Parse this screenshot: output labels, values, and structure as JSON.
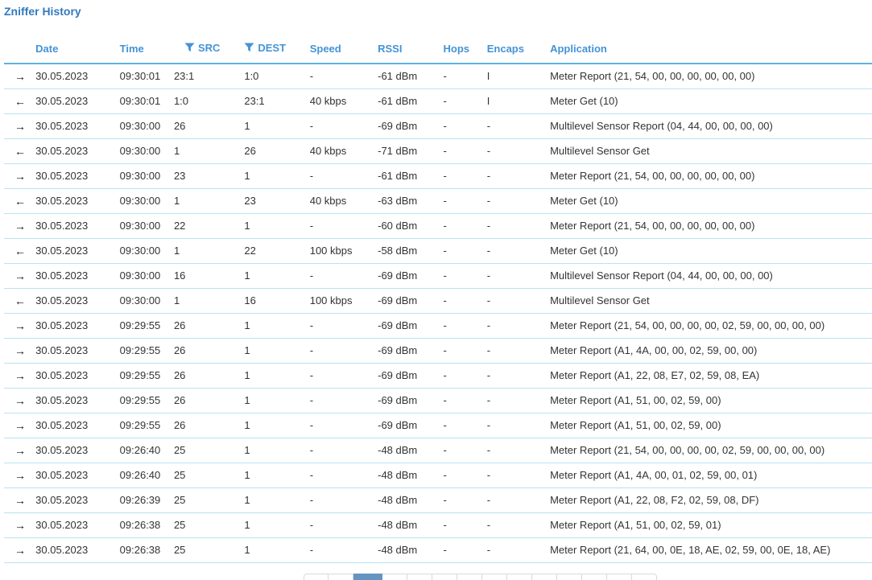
{
  "page": {
    "title": "Zniffer History"
  },
  "colors": {
    "title_blue": "#3279bd",
    "header_blue": "#4493d6",
    "header_underline": "#5fb2e4",
    "row_separator": "#b9e2f4",
    "body_text": "#333333",
    "active_page_btn": "#6593c2"
  },
  "icons": {
    "outgoing_glyph": "→",
    "incoming_glyph": "←",
    "filter_glyph": "funnel-icon"
  },
  "table": {
    "columns": [
      {
        "key": "direction",
        "label": "",
        "filter": false
      },
      {
        "key": "date",
        "label": "Date",
        "filter": false
      },
      {
        "key": "time",
        "label": "Time",
        "filter": false
      },
      {
        "key": "src",
        "label": "SRC",
        "filter": true
      },
      {
        "key": "dest",
        "label": "DEST",
        "filter": true
      },
      {
        "key": "speed",
        "label": "Speed",
        "filter": false
      },
      {
        "key": "rssi",
        "label": "RSSI",
        "filter": false
      },
      {
        "key": "hops",
        "label": "Hops",
        "filter": false
      },
      {
        "key": "encaps",
        "label": "Encaps",
        "filter": false
      },
      {
        "key": "application",
        "label": "Application",
        "filter": false
      }
    ],
    "rows": [
      {
        "direction": "outgoing",
        "date": "30.05.2023",
        "time": "09:30:01",
        "src": "23:1",
        "dest": "1:0",
        "speed": "-",
        "rssi": "-61 dBm",
        "hops": "-",
        "encaps": "I",
        "application": "Meter Report (21, 54, 00, 00, 00, 00, 00, 00)"
      },
      {
        "direction": "incoming",
        "date": "30.05.2023",
        "time": "09:30:01",
        "src": "1:0",
        "dest": "23:1",
        "speed": "40 kbps",
        "rssi": "-61 dBm",
        "hops": "-",
        "encaps": "I",
        "application": "Meter Get (10)"
      },
      {
        "direction": "outgoing",
        "date": "30.05.2023",
        "time": "09:30:00",
        "src": "26",
        "dest": "1",
        "speed": "-",
        "rssi": "-69 dBm",
        "hops": "-",
        "encaps": "-",
        "application": "Multilevel Sensor Report (04, 44, 00, 00, 00, 00)"
      },
      {
        "direction": "incoming",
        "date": "30.05.2023",
        "time": "09:30:00",
        "src": "1",
        "dest": "26",
        "speed": "40 kbps",
        "rssi": "-71 dBm",
        "hops": "-",
        "encaps": "-",
        "application": "Multilevel Sensor Get"
      },
      {
        "direction": "outgoing",
        "date": "30.05.2023",
        "time": "09:30:00",
        "src": "23",
        "dest": "1",
        "speed": "-",
        "rssi": "-61 dBm",
        "hops": "-",
        "encaps": "-",
        "application": "Meter Report (21, 54, 00, 00, 00, 00, 00, 00)"
      },
      {
        "direction": "incoming",
        "date": "30.05.2023",
        "time": "09:30:00",
        "src": "1",
        "dest": "23",
        "speed": "40 kbps",
        "rssi": "-63 dBm",
        "hops": "-",
        "encaps": "-",
        "application": "Meter Get (10)"
      },
      {
        "direction": "outgoing",
        "date": "30.05.2023",
        "time": "09:30:00",
        "src": "22",
        "dest": "1",
        "speed": "-",
        "rssi": "-60 dBm",
        "hops": "-",
        "encaps": "-",
        "application": "Meter Report (21, 54, 00, 00, 00, 00, 00, 00)"
      },
      {
        "direction": "incoming",
        "date": "30.05.2023",
        "time": "09:30:00",
        "src": "1",
        "dest": "22",
        "speed": "100 kbps",
        "rssi": "-58 dBm",
        "hops": "-",
        "encaps": "-",
        "application": "Meter Get (10)"
      },
      {
        "direction": "outgoing",
        "date": "30.05.2023",
        "time": "09:30:00",
        "src": "16",
        "dest": "1",
        "speed": "-",
        "rssi": "-69 dBm",
        "hops": "-",
        "encaps": "-",
        "application": "Multilevel Sensor Report (04, 44, 00, 00, 00, 00)"
      },
      {
        "direction": "incoming",
        "date": "30.05.2023",
        "time": "09:30:00",
        "src": "1",
        "dest": "16",
        "speed": "100 kbps",
        "rssi": "-69 dBm",
        "hops": "-",
        "encaps": "-",
        "application": "Multilevel Sensor Get"
      },
      {
        "direction": "outgoing",
        "date": "30.05.2023",
        "time": "09:29:55",
        "src": "26",
        "dest": "1",
        "speed": "-",
        "rssi": "-69 dBm",
        "hops": "-",
        "encaps": "-",
        "application": "Meter Report (21, 54, 00, 00, 00, 00, 02, 59, 00, 00, 00, 00)"
      },
      {
        "direction": "outgoing",
        "date": "30.05.2023",
        "time": "09:29:55",
        "src": "26",
        "dest": "1",
        "speed": "-",
        "rssi": "-69 dBm",
        "hops": "-",
        "encaps": "-",
        "application": "Meter Report (A1, 4A, 00, 00, 02, 59, 00, 00)"
      },
      {
        "direction": "outgoing",
        "date": "30.05.2023",
        "time": "09:29:55",
        "src": "26",
        "dest": "1",
        "speed": "-",
        "rssi": "-69 dBm",
        "hops": "-",
        "encaps": "-",
        "application": "Meter Report (A1, 22, 08, E7, 02, 59, 08, EA)"
      },
      {
        "direction": "outgoing",
        "date": "30.05.2023",
        "time": "09:29:55",
        "src": "26",
        "dest": "1",
        "speed": "-",
        "rssi": "-69 dBm",
        "hops": "-",
        "encaps": "-",
        "application": "Meter Report (A1, 51, 00, 02, 59, 00)"
      },
      {
        "direction": "outgoing",
        "date": "30.05.2023",
        "time": "09:29:55",
        "src": "26",
        "dest": "1",
        "speed": "-",
        "rssi": "-69 dBm",
        "hops": "-",
        "encaps": "-",
        "application": "Meter Report (A1, 51, 00, 02, 59, 00)"
      },
      {
        "direction": "outgoing",
        "date": "30.05.2023",
        "time": "09:26:40",
        "src": "25",
        "dest": "1",
        "speed": "-",
        "rssi": "-48 dBm",
        "hops": "-",
        "encaps": "-",
        "application": "Meter Report (21, 54, 00, 00, 00, 00, 02, 59, 00, 00, 00, 00)"
      },
      {
        "direction": "outgoing",
        "date": "30.05.2023",
        "time": "09:26:40",
        "src": "25",
        "dest": "1",
        "speed": "-",
        "rssi": "-48 dBm",
        "hops": "-",
        "encaps": "-",
        "application": "Meter Report (A1, 4A, 00, 01, 02, 59, 00, 01)"
      },
      {
        "direction": "outgoing",
        "date": "30.05.2023",
        "time": "09:26:39",
        "src": "25",
        "dest": "1",
        "speed": "-",
        "rssi": "-48 dBm",
        "hops": "-",
        "encaps": "-",
        "application": "Meter Report (A1, 22, 08, F2, 02, 59, 08, DF)"
      },
      {
        "direction": "outgoing",
        "date": "30.05.2023",
        "time": "09:26:38",
        "src": "25",
        "dest": "1",
        "speed": "-",
        "rssi": "-48 dBm",
        "hops": "-",
        "encaps": "-",
        "application": "Meter Report (A1, 51, 00, 02, 59, 01)"
      },
      {
        "direction": "outgoing",
        "date": "30.05.2023",
        "time": "09:26:38",
        "src": "25",
        "dest": "1",
        "speed": "-",
        "rssi": "-48 dBm",
        "hops": "-",
        "encaps": "-",
        "application": "Meter Report (21, 64, 00, 0E, 18, AE, 02, 59, 00, 0E, 18, AE)"
      }
    ]
  },
  "pagination": {
    "button_count": 14,
    "active_index": 2,
    "labels_visible": false
  }
}
